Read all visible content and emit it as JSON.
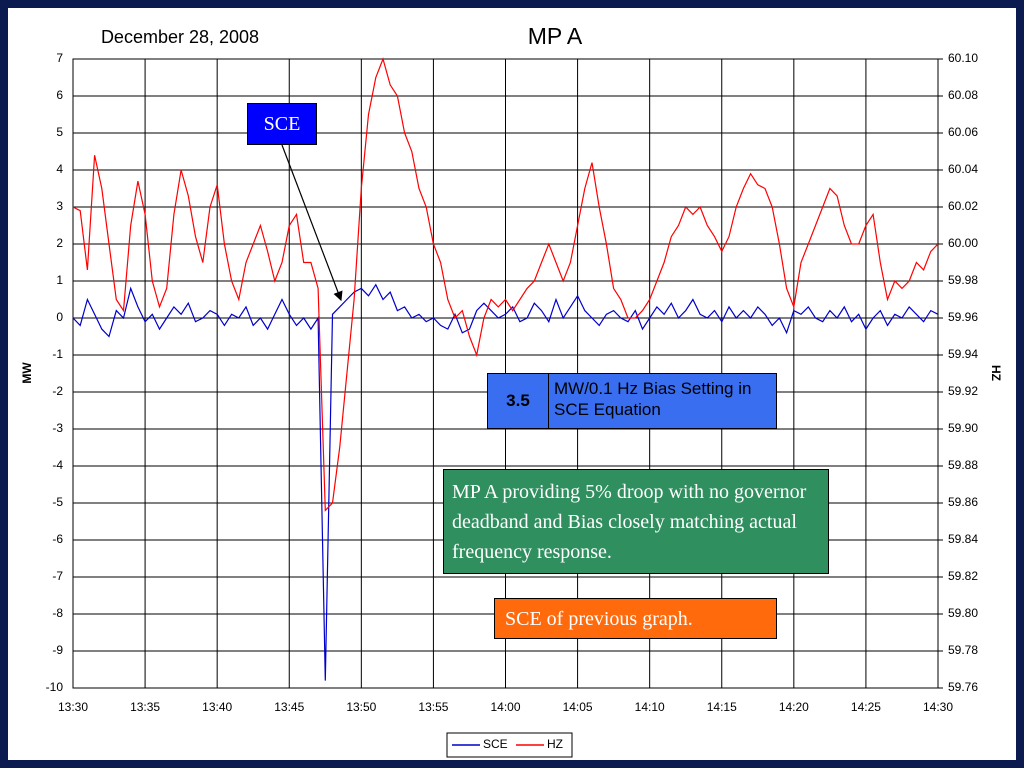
{
  "chart_data": {
    "type": "line",
    "title": "MP A",
    "y_label": "MW",
    "y2_label": "HZ",
    "annotations": {
      "date": "December 28, 2008",
      "sce_label": "SCE",
      "bias_value": "3.5",
      "bias_text": "MW/0.1 Hz Bias Setting in SCE Equation",
      "green_note": "MP A providing 5% droop with no governor deadband and Bias closely matching actual frequency response.",
      "orange_note": "SCE of previous graph."
    },
    "categories": [
      "13:30",
      null,
      null,
      null,
      null,
      null,
      null,
      null,
      null,
      null,
      "13:35",
      null,
      null,
      null,
      null,
      null,
      null,
      null,
      null,
      null,
      "13:40",
      null,
      null,
      null,
      null,
      null,
      null,
      null,
      null,
      null,
      "13:45",
      null,
      null,
      null,
      null,
      null,
      null,
      null,
      null,
      null,
      "13:50",
      null,
      null,
      null,
      null,
      null,
      null,
      null,
      null,
      null,
      "13:55",
      null,
      null,
      null,
      null,
      null,
      null,
      null,
      null,
      null,
      "14:00",
      null,
      null,
      null,
      null,
      null,
      null,
      null,
      null,
      null,
      "14:05",
      null,
      null,
      null,
      null,
      null,
      null,
      null,
      null,
      null,
      "14:10",
      null,
      null,
      null,
      null,
      null,
      null,
      null,
      null,
      null,
      "14:15",
      null,
      null,
      null,
      null,
      null,
      null,
      null,
      null,
      null,
      "14:20",
      null,
      null,
      null,
      null,
      null,
      null,
      null,
      null,
      null,
      "14:25",
      null,
      null,
      null,
      null,
      null,
      null,
      null,
      null,
      null,
      "14:30"
    ],
    "series": [
      {
        "name": "SCE",
        "color": "#0000cc",
        "values": [
          0,
          -0.2,
          0.5,
          0.1,
          -0.3,
          -0.5,
          0.2,
          0,
          0.8,
          0.3,
          -0.1,
          0.1,
          -0.3,
          0,
          0.3,
          0.1,
          0.4,
          -0.1,
          0,
          0.2,
          0.1,
          -0.2,
          0.1,
          0,
          0.3,
          -0.2,
          0,
          -0.3,
          0.1,
          0.5,
          0.1,
          -0.2,
          0,
          -0.3,
          0,
          -9.8,
          0.1,
          0.3,
          0.5,
          0.7,
          0.8,
          0.6,
          0.9,
          0.5,
          0.7,
          0.2,
          0.3,
          0,
          0.1,
          -0.1,
          0,
          -0.2,
          -0.3,
          0.1,
          -0.4,
          -0.3,
          0.2,
          0.4,
          0.2,
          0,
          0.1,
          0.3,
          -0.1,
          0,
          0.4,
          0.2,
          -0.1,
          0.5,
          0,
          0.3,
          0.6,
          0.2,
          0,
          -0.2,
          0.1,
          0.2,
          0,
          -0.1,
          0.2,
          -0.3,
          0,
          0.3,
          0.1,
          0.4,
          0,
          0.2,
          0.5,
          0.1,
          0,
          0.2,
          -0.1,
          0.3,
          0,
          0.2,
          0,
          0.3,
          0.1,
          -0.2,
          0,
          -0.4,
          0.2,
          0.1,
          0.3,
          0,
          -0.1,
          0.2,
          0,
          0.3,
          -0.1,
          0.1,
          -0.3,
          0,
          0.2,
          -0.2,
          0.1,
          0,
          0.3,
          0.1,
          -0.1,
          0.2,
          0.1
        ]
      },
      {
        "name": "HZ",
        "color": "#ff0000",
        "axis": "y2",
        "values": [
          60.02,
          60.018,
          59.986,
          60.048,
          60.03,
          60,
          59.97,
          59.964,
          60.01,
          60.034,
          60.016,
          59.98,
          59.966,
          59.976,
          60.016,
          60.04,
          60.026,
          60.004,
          59.99,
          60.02,
          60.032,
          60,
          59.98,
          59.97,
          59.99,
          60,
          60.01,
          59.996,
          59.98,
          59.99,
          60.01,
          60.016,
          59.99,
          59.99,
          59.976,
          59.856,
          59.86,
          59.89,
          59.93,
          59.97,
          60.03,
          60.07,
          60.09,
          60.1,
          60.086,
          60.08,
          60.06,
          60.05,
          60.03,
          60.02,
          60,
          59.99,
          59.97,
          59.96,
          59.964,
          59.95,
          59.94,
          59.96,
          59.97,
          59.966,
          59.97,
          59.964,
          59.97,
          59.976,
          59.98,
          59.99,
          60,
          59.99,
          59.98,
          59.99,
          60.01,
          60.03,
          60.044,
          60.02,
          60,
          59.976,
          59.97,
          59.96,
          59.96,
          59.964,
          59.97,
          59.98,
          59.99,
          60.004,
          60.01,
          60.02,
          60.016,
          60.02,
          60.01,
          60.004,
          59.996,
          60.004,
          60.02,
          60.03,
          60.038,
          60.032,
          60.03,
          60.02,
          60,
          59.976,
          59.966,
          59.99,
          60,
          60.01,
          60.02,
          60.03,
          60.026,
          60.01,
          60,
          60,
          60.01,
          60.016,
          59.99,
          59.97,
          59.98,
          59.976,
          59.98,
          59.99,
          59.986,
          59.996,
          60
        ]
      }
    ],
    "ylim": [
      -10,
      7
    ],
    "yticks": [
      -10,
      -9,
      -8,
      -7,
      -6,
      -5,
      -4,
      -3,
      -2,
      -1,
      0,
      1,
      2,
      3,
      4,
      5,
      6,
      7
    ],
    "y2lim": [
      59.76,
      60.1
    ],
    "y2ticks": [
      59.76,
      59.78,
      {
        "value": 59.8,
        "label": "59.80"
      },
      59.82,
      59.84,
      59.86,
      59.88,
      {
        "value": 59.9,
        "label": "59.90"
      },
      59.92,
      59.94,
      59.96,
      59.98,
      {
        "value": 60,
        "label": "60.00"
      },
      60.02,
      60.04,
      60.06,
      60.08,
      {
        "value": 60.1,
        "label": "60.10"
      }
    ],
    "grid": true
  }
}
